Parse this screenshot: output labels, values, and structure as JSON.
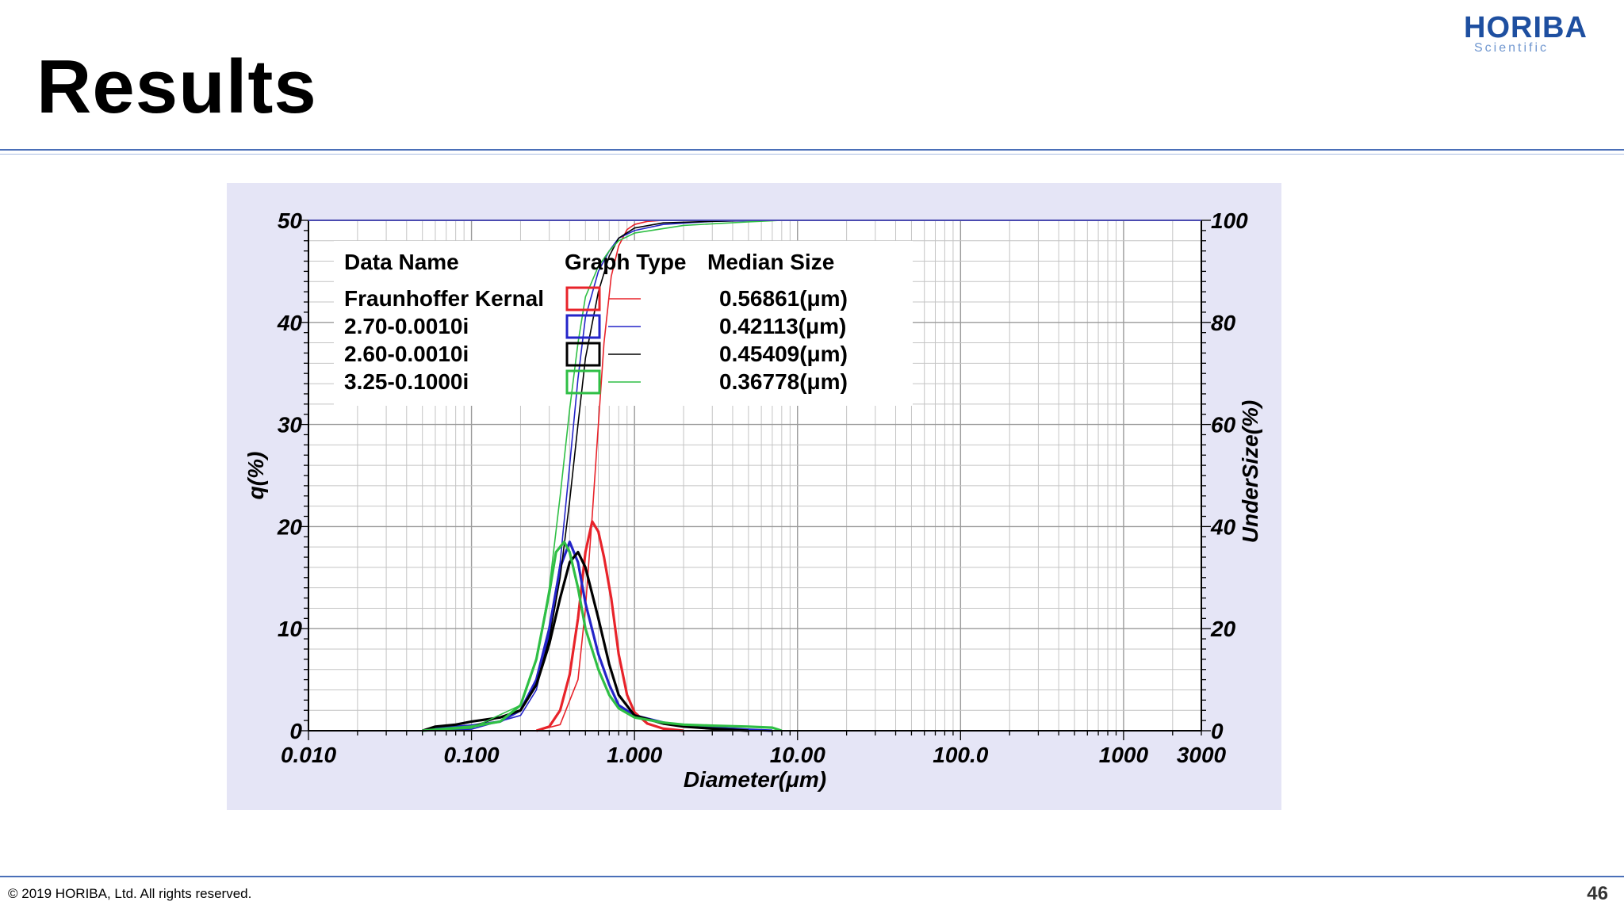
{
  "slide": {
    "title": "Results",
    "logo": {
      "main": "HORIBA",
      "sub": "Scientific"
    },
    "footer": "© 2019 HORIBA, Ltd. All rights reserved.",
    "page_number": "46"
  },
  "chart_data": {
    "type": "line",
    "xlabel": "Diameter(μm)",
    "ylabel_left": "q(%)",
    "ylabel_right": "UnderSize(%)",
    "x_scale": "log",
    "xlim": [
      0.01,
      3000
    ],
    "ylim_left": [
      0,
      50
    ],
    "ylim_right": [
      0,
      100
    ],
    "x_ticks": [
      {
        "value": 0.01,
        "label": "0.010"
      },
      {
        "value": 0.1,
        "label": "0.100"
      },
      {
        "value": 1,
        "label": "1.000"
      },
      {
        "value": 10,
        "label": "10.00"
      },
      {
        "value": 100,
        "label": "100.0"
      },
      {
        "value": 1000,
        "label": "1000"
      },
      {
        "value": 3000,
        "label": "3000"
      }
    ],
    "y_left_ticks": [
      {
        "value": 0,
        "label": "0"
      },
      {
        "value": 10,
        "label": "10"
      },
      {
        "value": 20,
        "label": "20"
      },
      {
        "value": 30,
        "label": "30"
      },
      {
        "value": 40,
        "label": "40"
      },
      {
        "value": 50,
        "label": "50"
      }
    ],
    "y_right_ticks": [
      {
        "value": 0,
        "label": "0"
      },
      {
        "value": 20,
        "label": "20"
      },
      {
        "value": 40,
        "label": "40"
      },
      {
        "value": 60,
        "label": "60"
      },
      {
        "value": 80,
        "label": "80"
      },
      {
        "value": 100,
        "label": "100"
      }
    ],
    "grid": true,
    "legend": {
      "position": "top-left",
      "headers": [
        "Data Name",
        "Graph Type",
        "Median Size"
      ]
    },
    "series": [
      {
        "name": "Fraunhoffer Kernal",
        "color": "#e8232a",
        "median": "0.56861(μm)",
        "frequency": [
          [
            0.25,
            0
          ],
          [
            0.3,
            0.4
          ],
          [
            0.35,
            2
          ],
          [
            0.4,
            5.5
          ],
          [
            0.45,
            11
          ],
          [
            0.5,
            17.5
          ],
          [
            0.55,
            20.5
          ],
          [
            0.6,
            19.5
          ],
          [
            0.65,
            17
          ],
          [
            0.72,
            13
          ],
          [
            0.8,
            7.5
          ],
          [
            0.9,
            3.5
          ],
          [
            1.0,
            1.8
          ],
          [
            1.2,
            0.7
          ],
          [
            1.5,
            0.2
          ],
          [
            2.0,
            0
          ]
        ],
        "undersize": [
          [
            0.25,
            0
          ],
          [
            0.35,
            1.2
          ],
          [
            0.45,
            10
          ],
          [
            0.5,
            24
          ],
          [
            0.55,
            42
          ],
          [
            0.6,
            60
          ],
          [
            0.65,
            76
          ],
          [
            0.72,
            89
          ],
          [
            0.8,
            95
          ],
          [
            0.9,
            98.2
          ],
          [
            1.0,
            99.2
          ],
          [
            1.2,
            99.8
          ],
          [
            1.5,
            100
          ],
          [
            3000,
            100
          ]
        ]
      },
      {
        "name": "2.70-0.0010i",
        "color": "#2424c8",
        "median": "0.42113(μm)",
        "frequency": [
          [
            0.05,
            0
          ],
          [
            0.06,
            0.3
          ],
          [
            0.08,
            0.4
          ],
          [
            0.1,
            0.5
          ],
          [
            0.15,
            0.9
          ],
          [
            0.2,
            2
          ],
          [
            0.25,
            5
          ],
          [
            0.3,
            10
          ],
          [
            0.35,
            16
          ],
          [
            0.4,
            18.5
          ],
          [
            0.45,
            16.5
          ],
          [
            0.5,
            12.5
          ],
          [
            0.6,
            7.5
          ],
          [
            0.7,
            4.5
          ],
          [
            0.8,
            2.5
          ],
          [
            1.0,
            1.5
          ],
          [
            1.5,
            0.8
          ],
          [
            2.0,
            0.5
          ],
          [
            3.0,
            0.3
          ],
          [
            5.0,
            0.1
          ],
          [
            7.0,
            0
          ]
        ],
        "undersize": [
          [
            0.05,
            0
          ],
          [
            0.1,
            0.3
          ],
          [
            0.2,
            3
          ],
          [
            0.25,
            8
          ],
          [
            0.3,
            19
          ],
          [
            0.35,
            33
          ],
          [
            0.4,
            52
          ],
          [
            0.45,
            69
          ],
          [
            0.5,
            81
          ],
          [
            0.6,
            90
          ],
          [
            0.7,
            94
          ],
          [
            0.8,
            96.5
          ],
          [
            1.0,
            98
          ],
          [
            1.5,
            99.2
          ],
          [
            3.0,
            99.8
          ],
          [
            7.0,
            100
          ],
          [
            3000,
            100
          ]
        ]
      },
      {
        "name": "2.60-0.0010i",
        "color": "#000000",
        "median": "0.45409(μm)",
        "frequency": [
          [
            0.05,
            0
          ],
          [
            0.06,
            0.4
          ],
          [
            0.08,
            0.6
          ],
          [
            0.1,
            0.9
          ],
          [
            0.15,
            1.3
          ],
          [
            0.2,
            2
          ],
          [
            0.25,
            4.5
          ],
          [
            0.3,
            8.5
          ],
          [
            0.35,
            13
          ],
          [
            0.4,
            16.5
          ],
          [
            0.45,
            17.5
          ],
          [
            0.5,
            16
          ],
          [
            0.6,
            11
          ],
          [
            0.7,
            6.5
          ],
          [
            0.8,
            3.5
          ],
          [
            1.0,
            1.5
          ],
          [
            1.5,
            0.7
          ],
          [
            2.0,
            0.4
          ],
          [
            3.0,
            0.2
          ],
          [
            5.0,
            0
          ]
        ],
        "undersize": [
          [
            0.05,
            0
          ],
          [
            0.1,
            0.8
          ],
          [
            0.2,
            4
          ],
          [
            0.25,
            9
          ],
          [
            0.3,
            18
          ],
          [
            0.35,
            30
          ],
          [
            0.4,
            45
          ],
          [
            0.45,
            60
          ],
          [
            0.5,
            73
          ],
          [
            0.6,
            86
          ],
          [
            0.7,
            93
          ],
          [
            0.8,
            96.5
          ],
          [
            1.0,
            98.5
          ],
          [
            1.5,
            99.5
          ],
          [
            5.0,
            100
          ],
          [
            3000,
            100
          ]
        ]
      },
      {
        "name": "3.25-0.1000i",
        "color": "#2fbf45",
        "median": "0.36778(μm)",
        "frequency": [
          [
            0.05,
            0
          ],
          [
            0.07,
            0.2
          ],
          [
            0.1,
            0.4
          ],
          [
            0.15,
            0.9
          ],
          [
            0.2,
            2.5
          ],
          [
            0.25,
            7
          ],
          [
            0.3,
            13.5
          ],
          [
            0.33,
            17.5
          ],
          [
            0.37,
            18.5
          ],
          [
            0.4,
            17.5
          ],
          [
            0.45,
            14
          ],
          [
            0.5,
            10
          ],
          [
            0.6,
            6
          ],
          [
            0.7,
            3.5
          ],
          [
            0.8,
            2.2
          ],
          [
            1.0,
            1.3
          ],
          [
            1.5,
            0.8
          ],
          [
            2.0,
            0.6
          ],
          [
            3.0,
            0.5
          ],
          [
            5.0,
            0.4
          ],
          [
            7.0,
            0.3
          ],
          [
            8.0,
            0
          ]
        ],
        "undersize": [
          [
            0.05,
            0
          ],
          [
            0.1,
            0.5
          ],
          [
            0.2,
            5
          ],
          [
            0.25,
            14
          ],
          [
            0.3,
            28
          ],
          [
            0.35,
            46
          ],
          [
            0.4,
            63
          ],
          [
            0.45,
            76
          ],
          [
            0.5,
            85
          ],
          [
            0.6,
            91
          ],
          [
            0.7,
            94
          ],
          [
            0.8,
            96
          ],
          [
            1.0,
            97.5
          ],
          [
            2.0,
            99
          ],
          [
            5.0,
            99.7
          ],
          [
            8.0,
            100
          ],
          [
            3000,
            100
          ]
        ]
      }
    ]
  }
}
